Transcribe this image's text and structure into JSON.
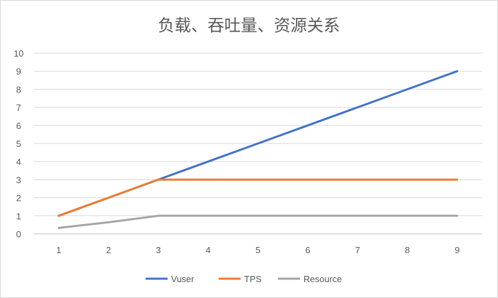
{
  "chart_data": {
    "type": "line",
    "title": "负载、吞吐量、资源关系",
    "x": [
      1,
      2,
      3,
      4,
      5,
      6,
      7,
      8,
      9
    ],
    "x_tick_labels": [
      "1",
      "2",
      "3",
      "4",
      "5",
      "6",
      "7",
      "8",
      "9"
    ],
    "y_tick_labels": [
      "0",
      "1",
      "2",
      "3",
      "4",
      "5",
      "6",
      "7",
      "8",
      "9",
      "10"
    ],
    "ylim": [
      0,
      10
    ],
    "grid": true,
    "legend_position": "bottom",
    "series": [
      {
        "name": "Vuser",
        "color": "#4472c4",
        "values": [
          1,
          2,
          3,
          4,
          5,
          6,
          7,
          8,
          9
        ]
      },
      {
        "name": "TPS",
        "color": "#ed7d31",
        "values": [
          1,
          2,
          3,
          3,
          3,
          3,
          3,
          3,
          3
        ]
      },
      {
        "name": "Resource",
        "color": "#a5a5a5",
        "values": [
          0.33,
          0.64,
          1,
          1,
          1,
          1,
          1,
          1,
          1
        ]
      }
    ]
  }
}
